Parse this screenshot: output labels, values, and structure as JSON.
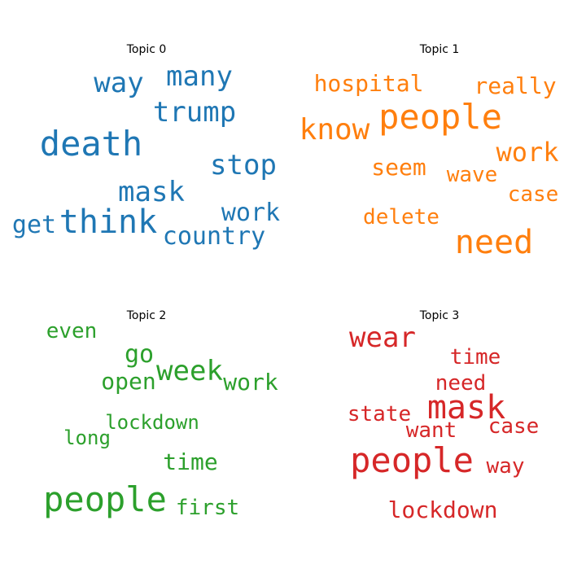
{
  "topics": [
    {
      "title": "Topic 0",
      "color": "#1f77b4",
      "words": [
        "death",
        "think",
        "mask",
        "trump",
        "many",
        "way",
        "stop",
        "work",
        "country",
        "get"
      ]
    },
    {
      "title": "Topic 1",
      "color": "#ff7f0e",
      "words": [
        "people",
        "need",
        "know",
        "work",
        "hospital",
        "really",
        "seem",
        "wave",
        "case",
        "delete"
      ]
    },
    {
      "title": "Topic 2",
      "color": "#2ca02c",
      "words": [
        "people",
        "week",
        "go",
        "open",
        "work",
        "even",
        "lockdown",
        "long",
        "time",
        "first"
      ]
    },
    {
      "title": "Topic 3",
      "color": "#d62728",
      "words": [
        "people",
        "mask",
        "wear",
        "time",
        "need",
        "state",
        "want",
        "case",
        "way",
        "lockdown"
      ]
    }
  ]
}
